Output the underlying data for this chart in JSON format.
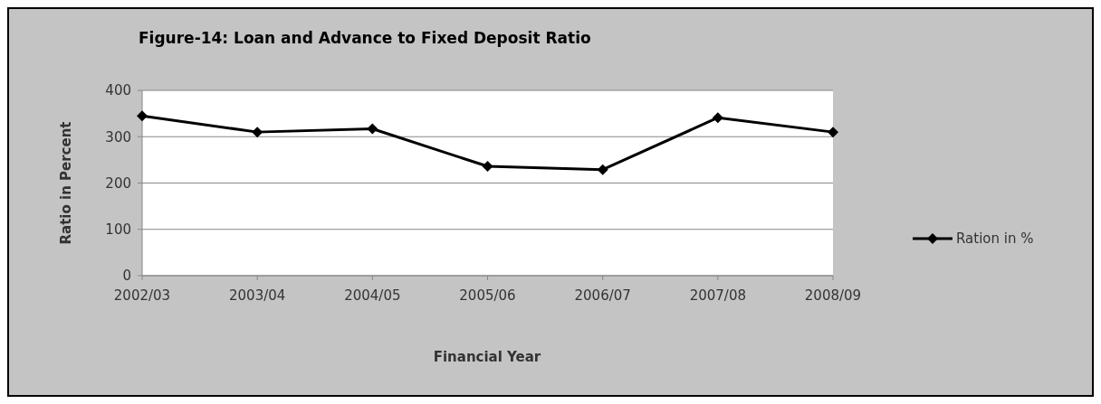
{
  "chart_data": {
    "type": "line",
    "title": "Figure-14: Loan and Advance to Fixed Deposit Ratio",
    "xlabel": "Financial Year",
    "ylabel": "Ratio in Percent",
    "categories": [
      "2002/03",
      "2003/04",
      "2004/05",
      "2005/06",
      "2006/07",
      "2007/08",
      "2008/09"
    ],
    "series": [
      {
        "name": "Ration in %",
        "color": "#000000",
        "values": [
          345,
          310,
          317,
          236,
          229,
          341,
          310
        ]
      }
    ],
    "ylim": [
      0,
      400
    ],
    "yticks": [
      0,
      100,
      200,
      300,
      400
    ],
    "grid": "y",
    "legend": "right",
    "marker": "diamond",
    "line_style": "solid"
  }
}
